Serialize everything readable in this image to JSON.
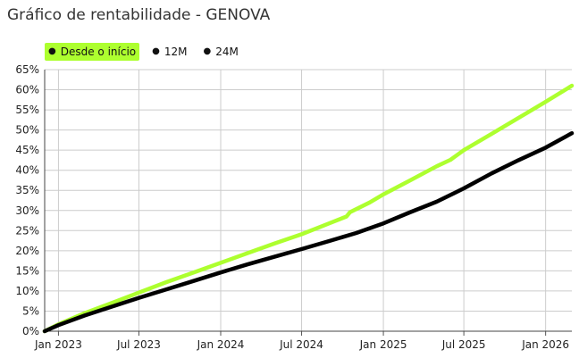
{
  "title": "Gráfico de rentabilidade - GENOVA",
  "legend": {
    "items": [
      {
        "label": "Desde o início",
        "active": true
      },
      {
        "label": "12M",
        "active": false
      },
      {
        "label": "24M",
        "active": false
      }
    ]
  },
  "colors": {
    "fund": "#adff2f",
    "benchmark": "#000000",
    "grid": "#cccccc",
    "active_legend": "#adff2f"
  },
  "chart_data": {
    "type": "line",
    "y_ticks": [
      "0%",
      "5%",
      "10%",
      "15%",
      "20%",
      "25%",
      "30%",
      "35%",
      "40%",
      "45%",
      "50%",
      "55%",
      "60%",
      "65%"
    ],
    "ylim": [
      0,
      65
    ],
    "x_ticks": [
      {
        "label": "Jan 2023",
        "date": "2023-01-01"
      },
      {
        "label": "Jul 2023",
        "date": "2023-07-01"
      },
      {
        "label": "Jan 2024",
        "date": "2024-01-01"
      },
      {
        "label": "Jul 2024",
        "date": "2024-07-01"
      },
      {
        "label": "Jan 2025",
        "date": "2025-01-01"
      },
      {
        "label": "Jul 2025",
        "date": "2025-07-01"
      },
      {
        "label": "Jan 2026",
        "date": "2026-01-01"
      }
    ],
    "xlim": [
      "2022-12-01",
      "2026-03-01"
    ],
    "grid": true,
    "series": [
      {
        "color": "#adff2f",
        "points": [
          [
            "2022-12-01",
            0.0
          ],
          [
            "2023-01-01",
            1.7
          ],
          [
            "2023-03-01",
            4.5
          ],
          [
            "2023-05-01",
            7.0
          ],
          [
            "2023-07-01",
            9.6
          ],
          [
            "2023-09-01",
            12.2
          ],
          [
            "2023-11-01",
            14.6
          ],
          [
            "2024-01-01",
            17.0
          ],
          [
            "2024-03-01",
            19.4
          ],
          [
            "2024-05-01",
            21.8
          ],
          [
            "2024-07-01",
            24.1
          ],
          [
            "2024-09-01",
            26.8
          ],
          [
            "2024-10-10",
            28.5
          ],
          [
            "2024-10-18",
            29.6
          ],
          [
            "2024-12-01",
            32.0
          ],
          [
            "2025-01-01",
            34.0
          ],
          [
            "2025-03-01",
            37.4
          ],
          [
            "2025-05-01",
            41.0
          ],
          [
            "2025-06-01",
            42.6
          ],
          [
            "2025-07-01",
            45.0
          ],
          [
            "2025-09-01",
            49.0
          ],
          [
            "2025-11-01",
            53.0
          ],
          [
            "2026-01-01",
            57.0
          ],
          [
            "2026-03-01",
            61.0
          ]
        ]
      },
      {
        "color": "#000000",
        "points": [
          [
            "2022-12-01",
            0.0
          ],
          [
            "2023-01-01",
            1.5
          ],
          [
            "2023-03-01",
            3.9
          ],
          [
            "2023-05-01",
            6.1
          ],
          [
            "2023-07-01",
            8.3
          ],
          [
            "2023-09-01",
            10.4
          ],
          [
            "2023-11-01",
            12.5
          ],
          [
            "2024-01-01",
            14.6
          ],
          [
            "2024-03-01",
            16.6
          ],
          [
            "2024-05-01",
            18.5
          ],
          [
            "2024-07-01",
            20.4
          ],
          [
            "2024-09-01",
            22.4
          ],
          [
            "2024-11-01",
            24.4
          ],
          [
            "2025-01-01",
            26.8
          ],
          [
            "2025-03-01",
            29.5
          ],
          [
            "2025-05-01",
            32.2
          ],
          [
            "2025-07-01",
            35.5
          ],
          [
            "2025-09-01",
            39.2
          ],
          [
            "2025-11-01",
            42.5
          ],
          [
            "2026-01-01",
            45.6
          ],
          [
            "2026-03-01",
            49.2
          ]
        ]
      }
    ]
  }
}
